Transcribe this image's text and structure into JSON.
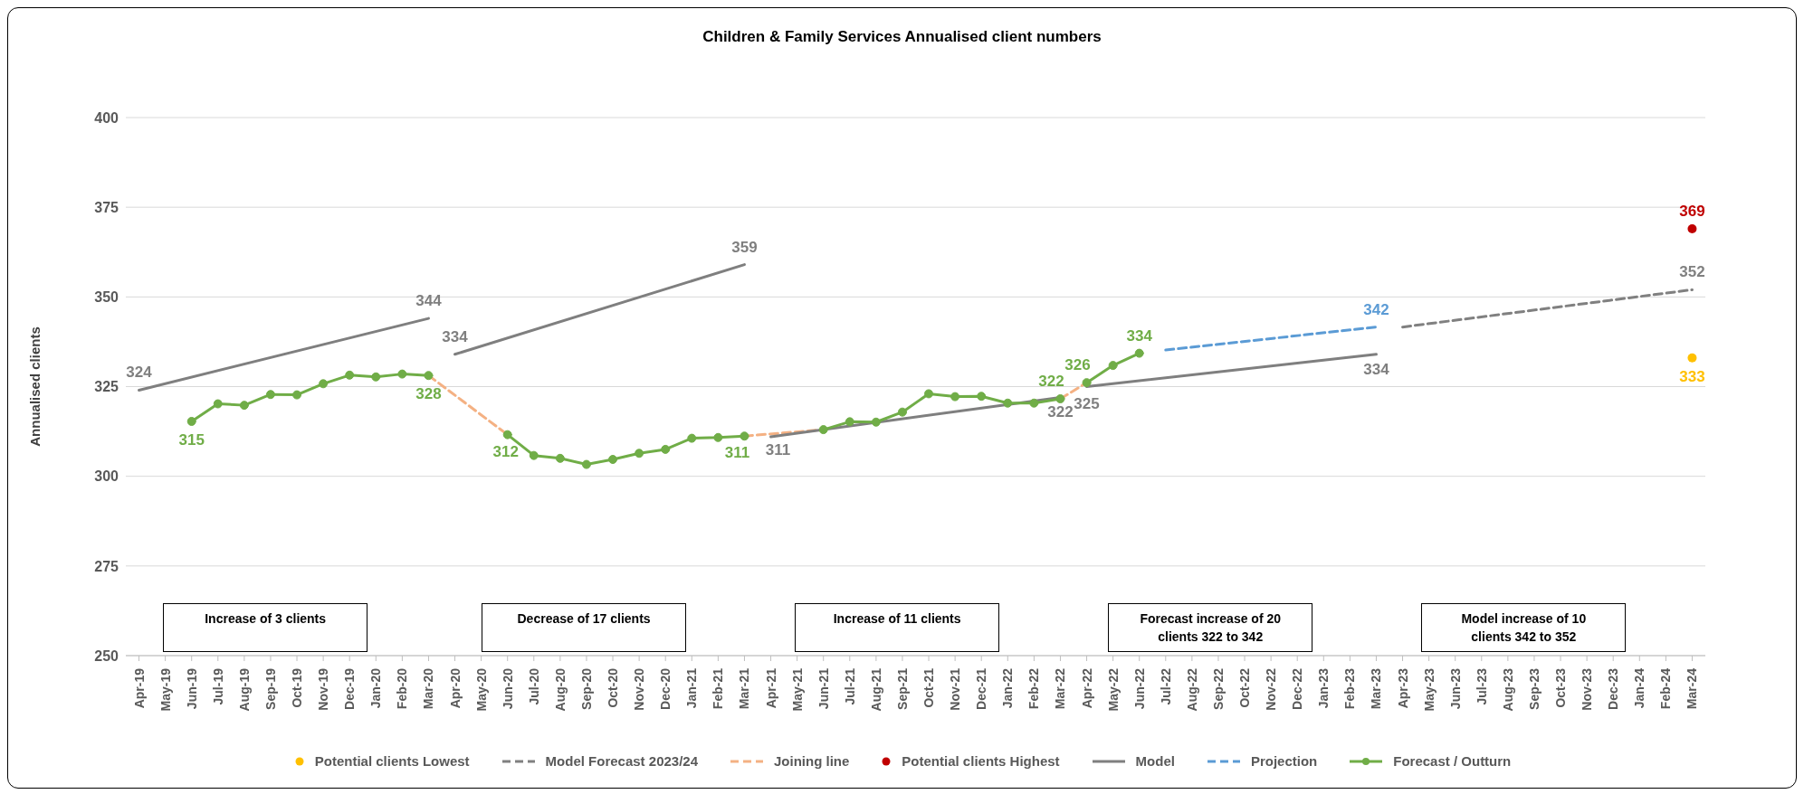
{
  "chart_data": {
    "type": "line",
    "title": "Children & Family Services Annualised client numbers",
    "ylabel": "Annualised clients",
    "categories": [
      "Apr-19",
      "May-19",
      "Jun-19",
      "Jul-19",
      "Aug-19",
      "Sep-19",
      "Oct-19",
      "Nov-19",
      "Dec-19",
      "Jan-20",
      "Feb-20",
      "Mar-20",
      "Apr-20",
      "May-20",
      "Jun-20",
      "Jul-20",
      "Aug-20",
      "Sep-20",
      "Oct-20",
      "Nov-20",
      "Dec-20",
      "Jan-21",
      "Feb-21",
      "Mar-21",
      "Apr-21",
      "May-21",
      "Jun-21",
      "Jul-21",
      "Aug-21",
      "Sep-21",
      "Oct-21",
      "Nov-21",
      "Dec-21",
      "Jan-22",
      "Feb-22",
      "Mar-22",
      "Apr-22",
      "May-22",
      "Jun-22",
      "Jul-22",
      "Aug-22",
      "Sep-22",
      "Oct-22",
      "Nov-22",
      "Dec-22",
      "Jan-23",
      "Feb-23",
      "Mar-23",
      "Apr-23",
      "May-23",
      "Jun-23",
      "Jul-23",
      "Aug-23",
      "Sep-23",
      "Oct-23",
      "Nov-23",
      "Dec-23",
      "Jan-24",
      "Feb-24",
      "Mar-24"
    ],
    "ylim": [
      250,
      400
    ],
    "yticks": [
      250,
      275,
      300,
      325,
      350,
      375,
      400
    ],
    "grid": "y",
    "legend": "bottom",
    "annotations": [
      "Increase of 3 clients",
      "Decrease of 17 clients",
      "Increase of 11 clients",
      "Forecast increase of 20 clients 322 to 342",
      "Model increase of 10 clients 342 to 352"
    ],
    "series": [
      {
        "name": "Potential clients Lowest",
        "type": "scatter",
        "color": "#ffc000",
        "marker": "circle",
        "x": [
          "Mar-24"
        ],
        "values": [
          333
        ],
        "value_labels": [
          "333"
        ]
      },
      {
        "name": "Model Forecast 2023/24",
        "color": "#808080",
        "line_style": "dashed",
        "marker": "none",
        "x": [
          "Apr-23",
          "Mar-24"
        ],
        "values": [
          341.6,
          352
        ],
        "value_labels": [
          null,
          "352"
        ]
      },
      {
        "name": "Joining line",
        "color": "#f4b183",
        "line_style": "dashed",
        "marker": "none",
        "x": [
          "Mar-20",
          "Jun-20",
          "Jul-20",
          "Mar-21",
          "Jun-21",
          "Jul-21",
          "Mar-22",
          "Apr-22"
        ],
        "values": [
          328.1,
          311.6,
          null,
          311.2,
          313,
          null,
          321.6,
          326.1
        ]
      },
      {
        "name": "Potential clients Highest",
        "type": "scatter",
        "color": "#c00000",
        "marker": "circle",
        "x": [
          "Mar-24"
        ],
        "values": [
          369
        ],
        "value_labels": [
          "369"
        ]
      },
      {
        "name": "Model",
        "color": "#7f7f7f",
        "line_style": "solid",
        "marker": "none",
        "x": [
          "Apr-19",
          "Mar-20",
          "Mar-20",
          "Apr-20",
          "Mar-21",
          "Mar-21",
          "Apr-21",
          "Mar-22",
          "Mar-22",
          "Apr-22",
          "Mar-23"
        ],
        "values": [
          324,
          344,
          null,
          334,
          359,
          null,
          311,
          322,
          null,
          325,
          334
        ],
        "value_labels": [
          "324",
          "344",
          null,
          "334",
          "359",
          null,
          "311",
          "322",
          null,
          "325",
          "334"
        ]
      },
      {
        "name": "Projection",
        "color": "#5b9bd5",
        "line_style": "dashed",
        "marker": "none",
        "x": [
          "Jul-22",
          "Mar-23"
        ],
        "values": [
          335.2,
          341.6
        ],
        "value_labels": [
          null,
          "342"
        ]
      },
      {
        "name": "Forecast / Outturn",
        "color": "#70ad47",
        "line_style": "solid",
        "marker": "circle",
        "x": [
          "Jun-19",
          "Jul-19",
          "Aug-19",
          "Sep-19",
          "Oct-19",
          "Nov-19",
          "Dec-19",
          "Jan-20",
          "Feb-20",
          "Mar-20",
          "Apr-20",
          "Jun-20",
          "Jul-20",
          "Aug-20",
          "Sep-20",
          "Oct-20",
          "Nov-20",
          "Dec-20",
          "Jan-21",
          "Feb-21",
          "Mar-21",
          "Apr-21",
          "Jun-21",
          "Jul-21",
          "Aug-21",
          "Sep-21",
          "Oct-21",
          "Nov-21",
          "Dec-21",
          "Jan-22",
          "Feb-22",
          "Mar-22",
          "Mar-22",
          "Apr-22",
          "May-22",
          "Jun-22"
        ],
        "values": [
          315.3,
          320.2,
          319.8,
          322.8,
          322.7,
          325.8,
          328.2,
          327.7,
          328.5,
          328.1,
          null,
          311.6,
          305.8,
          305,
          303.3,
          304.7,
          306.4,
          307.5,
          310.6,
          310.8,
          311.2,
          null,
          313,
          315.2,
          315.1,
          317.9,
          323,
          322.2,
          322.3,
          320.4,
          320.4,
          321.6,
          null,
          326.1,
          330.9,
          334.3
        ],
        "value_labels": [
          "315",
          null,
          null,
          null,
          null,
          null,
          null,
          null,
          null,
          "328",
          null,
          "312",
          null,
          null,
          null,
          null,
          null,
          null,
          null,
          null,
          "311",
          null,
          null,
          null,
          null,
          null,
          null,
          null,
          null,
          null,
          null,
          "322",
          null,
          "326",
          null,
          "334"
        ]
      }
    ]
  }
}
